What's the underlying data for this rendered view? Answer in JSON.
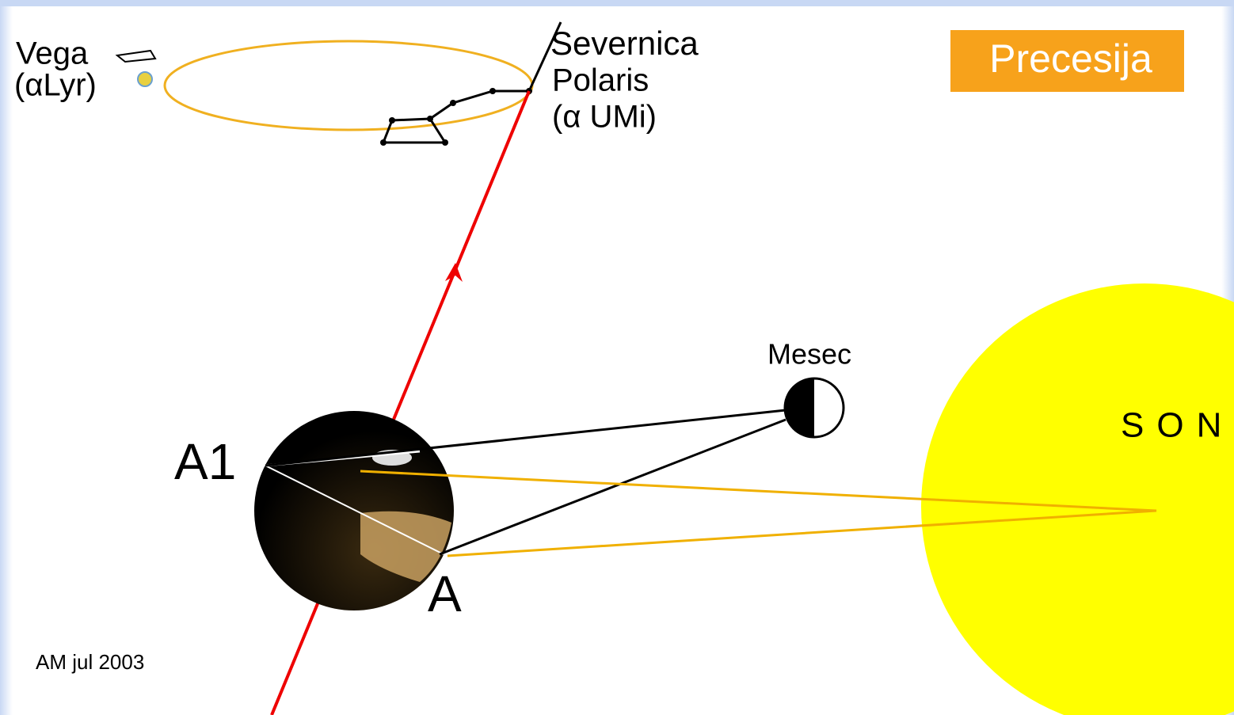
{
  "vega": {
    "name": "Vega",
    "designation": "(αLyr)"
  },
  "polaris": {
    "name1": "Severnica",
    "name2": "Polaris",
    "designation": "(α UMi)"
  },
  "title": "Precesija",
  "moon": "Mesec",
  "sun": "SONCE",
  "points": {
    "a1": "A1",
    "a": "A"
  },
  "credit": "AM jul 2003"
}
